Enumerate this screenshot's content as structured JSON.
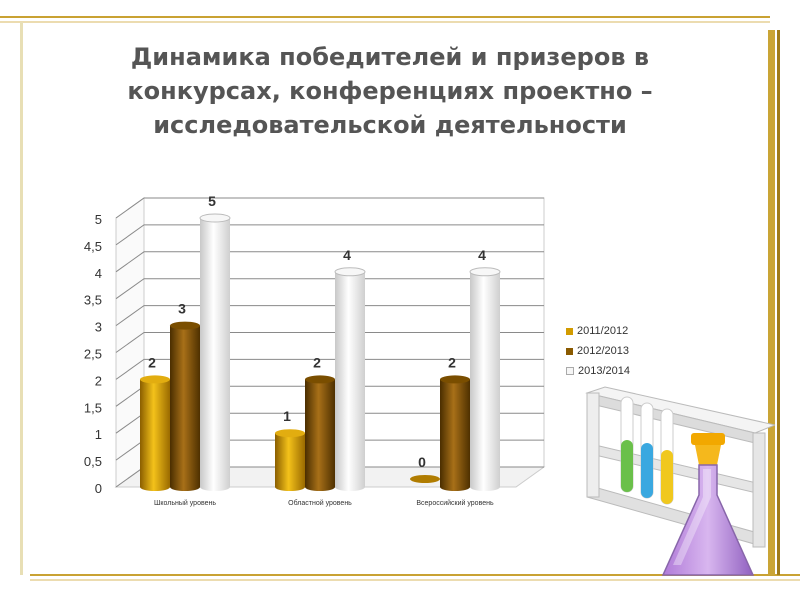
{
  "slide": {
    "title_lines": [
      "Динамика победителей и призеров в",
      "конкурсах, конференциях проектно –",
      "исследовательской деятельности"
    ]
  },
  "colors": {
    "accent_gold": "#d4a520",
    "border_gold": "#c9a233",
    "series": [
      "#d29b00",
      "#8a5a00",
      "#f0f0f0"
    ]
  },
  "chart_data": {
    "type": "bar",
    "categories": [
      "Школьный уровень",
      "Областной уровень",
      "Всероссийский уровень"
    ],
    "series": [
      {
        "name": "2011/2012",
        "values": [
          2,
          1,
          0
        ]
      },
      {
        "name": "2012/2013",
        "values": [
          3,
          2,
          2
        ]
      },
      {
        "name": "2013/2014",
        "values": [
          5,
          4,
          4
        ]
      }
    ],
    "ylim": [
      0,
      5
    ],
    "yticks": [
      "0",
      "0,5",
      "1",
      "1,5",
      "2",
      "2,5",
      "3",
      "3,5",
      "4",
      "4,5",
      "5"
    ],
    "data_labels": [
      [
        "2",
        "1",
        "0"
      ],
      [
        "3",
        "2",
        "2"
      ],
      [
        "5",
        "4",
        "4"
      ]
    ],
    "grid": true,
    "legend_position": "right"
  },
  "illustration": {
    "icon": "flask-and-test-tubes-icon"
  }
}
